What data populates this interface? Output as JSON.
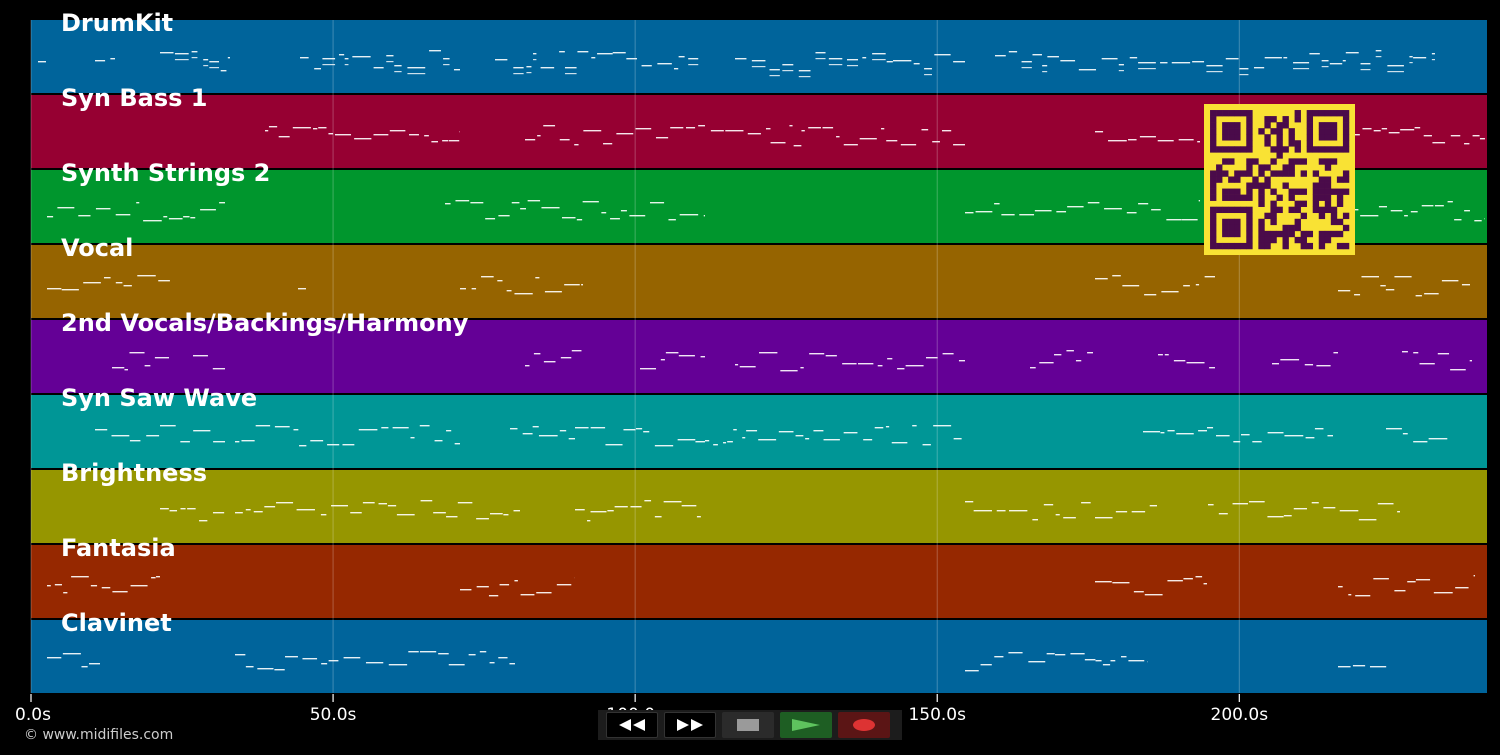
{
  "app": {
    "copyright": "© www.midifiles.com"
  },
  "tracks": [
    {
      "label": "DrumKit",
      "color": "#00649b"
    },
    {
      "label": "Syn Bass 1",
      "color": "#960032"
    },
    {
      "label": "Synth Strings 2",
      "color": "#00962d"
    },
    {
      "label": "Vocal",
      "color": "#966400"
    },
    {
      "label": "2nd Vocals/Backings/Harmony",
      "color": "#640096"
    },
    {
      "label": "Syn Saw Wave",
      "color": "#009696"
    },
    {
      "label": "Brightness",
      "color": "#969600"
    },
    {
      "label": "Fantasia",
      "color": "#962800"
    },
    {
      "label": "Clavinet",
      "color": "#00649b"
    }
  ],
  "timeline": {
    "ticks": [
      "0.0s",
      "50.0s",
      "100.0s",
      "150.0s",
      "200.0s"
    ],
    "tick_seconds": [
      0,
      50,
      100,
      150,
      200
    ],
    "max_seconds": 241
  },
  "transport": {
    "rewind_icon": "rewind-icon",
    "fast_forward_icon": "fast-forward-icon",
    "stop_icon": "stop-icon",
    "play_icon": "play-icon",
    "record_icon": "record-icon"
  },
  "qr": {
    "icon": "qr-code-icon",
    "fg": "#4a0b4a",
    "bg": "#f9e234"
  },
  "colors": {
    "background": "#000000",
    "grid": "#ffffff",
    "notes": "#ffffff"
  }
}
